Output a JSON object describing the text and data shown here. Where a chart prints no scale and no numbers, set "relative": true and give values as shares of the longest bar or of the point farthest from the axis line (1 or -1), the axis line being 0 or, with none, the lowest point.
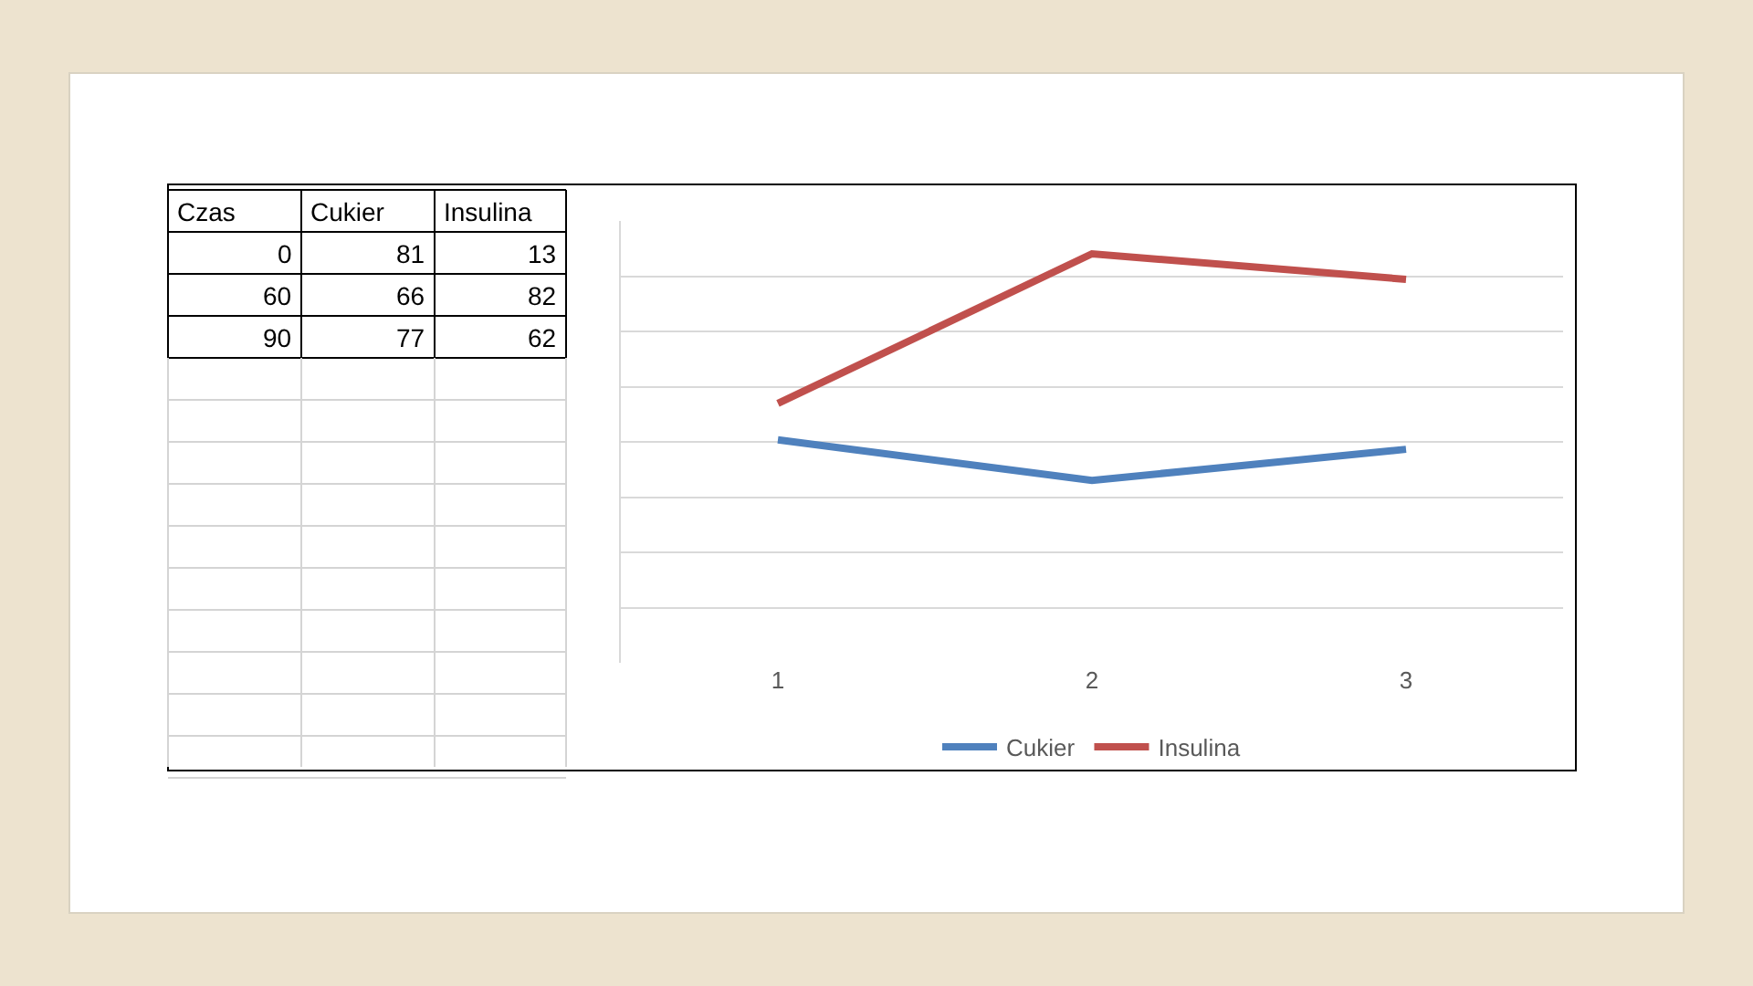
{
  "chart_data": [
    {
      "type": "other",
      "categories": [
        "Czas",
        "Cukier",
        "Insulina"
      ],
      "annotations": [
        "0",
        "81",
        "13",
        "60",
        "66",
        "82",
        "90",
        "77",
        "62"
      ]
    },
    {
      "type": "line",
      "relative": true,
      "categories": [
        "1",
        "2",
        "3"
      ],
      "series": [
        {
          "name": "Cukier",
          "color": "#4f81bd",
          "values": [
            0.545,
            0.446,
            0.522
          ]
        },
        {
          "name": "Insulina",
          "color": "#c0504d",
          "values": [
            0.634,
            1,
            0.9375
          ]
        }
      ],
      "grid": "y",
      "legend": "bottom",
      "marker": "none",
      "line_style": "solid"
    }
  ]
}
